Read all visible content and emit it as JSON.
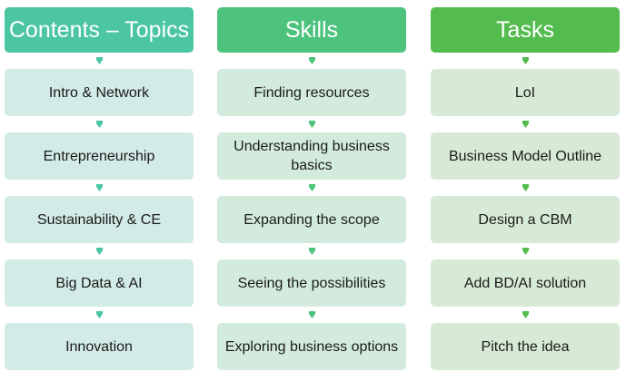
{
  "colors": {
    "col1_header": "#4cc5a3",
    "col1_item": "#d2ebe6",
    "col1_arrow": "#4cc5a3",
    "col2_header": "#4dc37d",
    "col2_item": "#d3ebdc",
    "col2_arrow": "#4dc37d",
    "col3_header": "#54bc4e",
    "col3_item": "#d7ead5",
    "col3_arrow": "#54bc4e"
  },
  "columns": [
    {
      "header": "Contents – Topics",
      "items": [
        "Intro & Network",
        "Entrepreneurship",
        "Sustainability & CE",
        "Big Data & AI",
        "Innovation"
      ]
    },
    {
      "header": "Skills",
      "items": [
        "Finding resources",
        "Understanding business basics",
        "Expanding the scope",
        "Seeing the possibilities",
        "Exploring business options"
      ]
    },
    {
      "header": "Tasks",
      "items": [
        "LoI",
        "Business Model Outline",
        "Design a CBM",
        "Add BD/AI solution",
        "Pitch the idea"
      ]
    }
  ]
}
